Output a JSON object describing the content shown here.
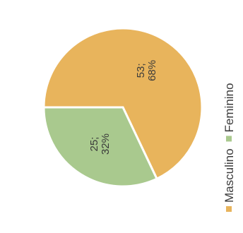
{
  "chart_data": {
    "type": "pie",
    "title": "",
    "slices": [
      {
        "name": "Masculino",
        "value": 53,
        "percent": "68%",
        "label": "53;",
        "color": "#e8b45c"
      },
      {
        "name": "Feminino",
        "value": 25,
        "percent": "32%",
        "label": "25;",
        "color": "#a9c98e"
      }
    ],
    "legend": {
      "placement": "right",
      "orientation": "vertical-rotated",
      "entries": [
        "Masculino",
        "Feminino"
      ]
    }
  }
}
